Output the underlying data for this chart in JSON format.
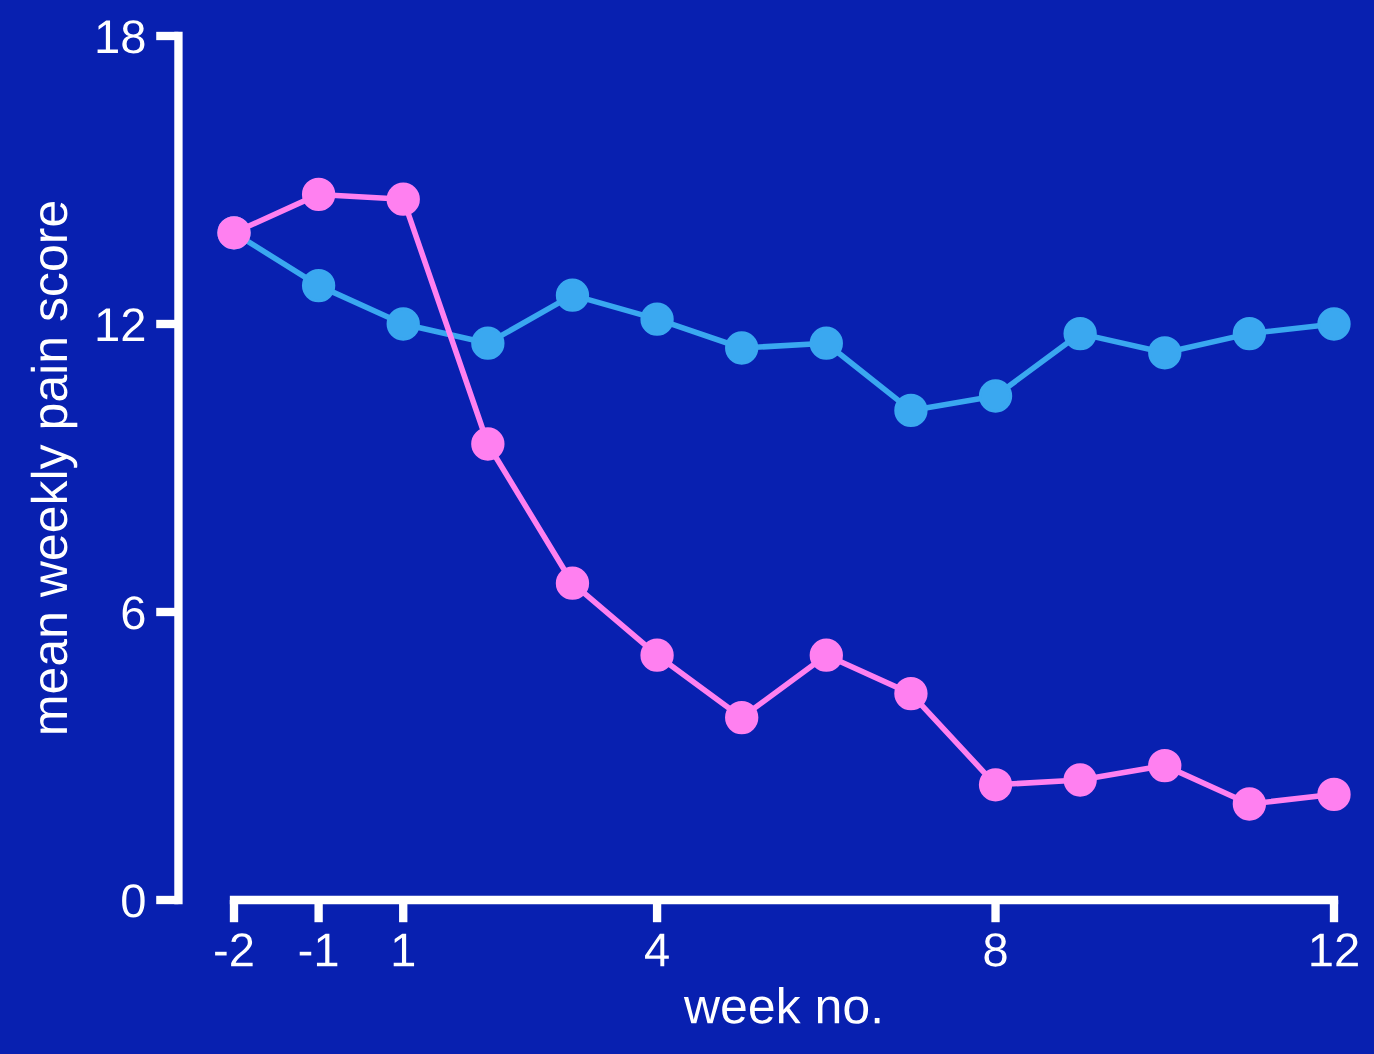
{
  "chart_data": {
    "type": "line",
    "xlabel": "week no.",
    "ylabel": "mean weekly pain score",
    "categories": [
      "-2",
      "-1",
      "1",
      null,
      null,
      "4",
      null,
      null,
      null,
      "8",
      null,
      null,
      null,
      "12"
    ],
    "series": [
      {
        "color": "#3aa8f0",
        "values": [
          13.9,
          12.8,
          12.0,
          11.6,
          12.6,
          12.1,
          11.5,
          11.6,
          10.2,
          10.5,
          11.8,
          11.4,
          11.8,
          12.0
        ]
      },
      {
        "color": "#ff80f0",
        "values": [
          13.9,
          14.7,
          14.6,
          9.5,
          6.6,
          5.1,
          3.8,
          5.1,
          4.3,
          2.4,
          2.5,
          2.8,
          2.0,
          2.2
        ]
      }
    ],
    "ylim": [
      0,
      18
    ],
    "yticks": [
      0,
      6,
      12,
      18
    ],
    "grid": false,
    "legend": false,
    "marker": "circle",
    "line_style": "solid"
  }
}
